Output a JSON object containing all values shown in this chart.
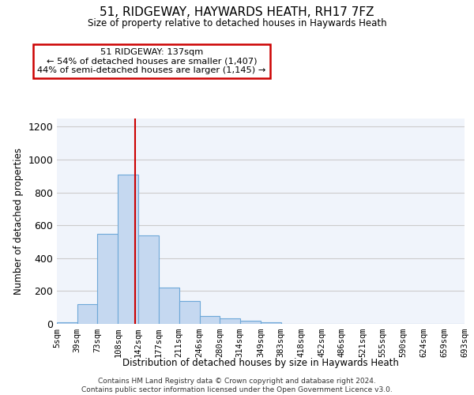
{
  "title1": "51, RIDGEWAY, HAYWARDS HEATH, RH17 7FZ",
  "title2": "Size of property relative to detached houses in Haywards Heath",
  "xlabel": "Distribution of detached houses by size in Haywards Heath",
  "ylabel": "Number of detached properties",
  "footer1": "Contains HM Land Registry data © Crown copyright and database right 2024.",
  "footer2": "Contains public sector information licensed under the Open Government Licence v3.0.",
  "annotation_line1": "51 RIDGEWAY: 137sqm",
  "annotation_line2": "← 54% of detached houses are smaller (1,407)",
  "annotation_line3": "44% of semi-detached houses are larger (1,145) →",
  "bar_color": "#c5d8f0",
  "bar_edge_color": "#6ea8d8",
  "vline_color": "#cc0000",
  "vline_x": 137,
  "bin_edges": [
    5,
    39,
    73,
    108,
    142,
    177,
    211,
    246,
    280,
    314,
    349,
    383,
    418,
    452,
    486,
    521,
    555,
    590,
    624,
    659,
    693
  ],
  "bar_heights": [
    8,
    120,
    550,
    910,
    540,
    220,
    140,
    50,
    32,
    20,
    8,
    0,
    0,
    0,
    0,
    0,
    0,
    0,
    0,
    0
  ],
  "tick_labels": [
    "5sqm",
    "39sqm",
    "73sqm",
    "108sqm",
    "142sqm",
    "177sqm",
    "211sqm",
    "246sqm",
    "280sqm",
    "314sqm",
    "349sqm",
    "383sqm",
    "418sqm",
    "452sqm",
    "486sqm",
    "521sqm",
    "555sqm",
    "590sqm",
    "624sqm",
    "659sqm",
    "693sqm"
  ],
  "ylim": [
    0,
    1250
  ],
  "xlim": [
    5,
    693
  ],
  "yticks": [
    0,
    200,
    400,
    600,
    800,
    1000,
    1200
  ],
  "background_color": "#f0f4fb"
}
